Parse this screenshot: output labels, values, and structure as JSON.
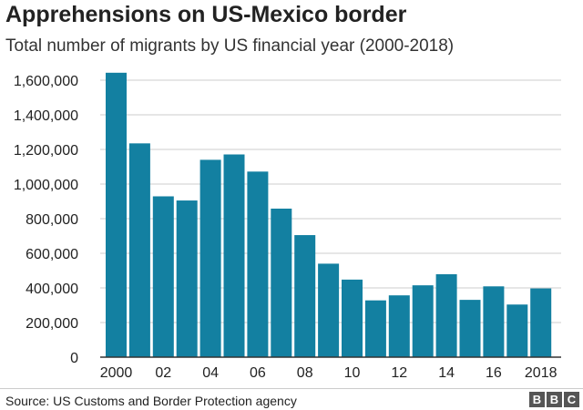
{
  "title": "Apprehensions on US-Mexico border",
  "subtitle": "Total number of migrants by US financial year (2000-2018)",
  "source": "Source: US Customs and Border Protection agency",
  "logo_text": "BBC",
  "colors": {
    "bar": "#1380a1",
    "grid": "#cccccc",
    "axis": "#333333",
    "text": "#222222"
  },
  "chart_data": {
    "type": "bar",
    "title": "Apprehensions on US-Mexico border",
    "subtitle": "Total number of migrants by US financial year (2000-2018)",
    "xlabel": "",
    "ylabel": "",
    "years": [
      2000,
      2001,
      2002,
      2003,
      2004,
      2005,
      2006,
      2007,
      2008,
      2009,
      2010,
      2011,
      2012,
      2013,
      2014,
      2015,
      2016,
      2017,
      2018
    ],
    "values": [
      1643000,
      1235000,
      929000,
      905000,
      1140000,
      1171000,
      1072000,
      858000,
      705000,
      540000,
      448000,
      328000,
      357000,
      415000,
      479000,
      331000,
      409000,
      304000,
      397000
    ],
    "x_tick_labels": [
      {
        "year": 2000,
        "label": "2000"
      },
      {
        "year": 2002,
        "label": "02"
      },
      {
        "year": 2004,
        "label": "04"
      },
      {
        "year": 2006,
        "label": "06"
      },
      {
        "year": 2008,
        "label": "08"
      },
      {
        "year": 2010,
        "label": "10"
      },
      {
        "year": 2012,
        "label": "12"
      },
      {
        "year": 2014,
        "label": "14"
      },
      {
        "year": 2016,
        "label": "16"
      },
      {
        "year": 2018,
        "label": "2018"
      }
    ],
    "y_ticks": [
      {
        "value": 0,
        "label": "0"
      },
      {
        "value": 200000,
        "label": "200,000"
      },
      {
        "value": 400000,
        "label": "400,000"
      },
      {
        "value": 600000,
        "label": "600,000"
      },
      {
        "value": 800000,
        "label": "800,000"
      },
      {
        "value": 1000000,
        "label": "1,000,000"
      },
      {
        "value": 1200000,
        "label": "1,200,000"
      },
      {
        "value": 1400000,
        "label": "1,400,000"
      },
      {
        "value": 1600000,
        "label": "1,600,000"
      }
    ],
    "ylim": [
      0,
      1600000
    ],
    "grid": true,
    "legend": "none"
  }
}
